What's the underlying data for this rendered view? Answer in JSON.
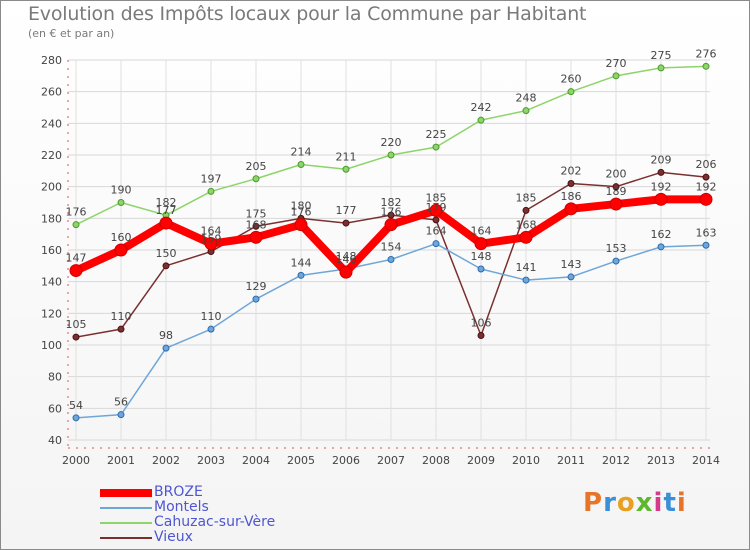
{
  "chart_data": {
    "type": "line",
    "title": "Evolution des Impôts locaux pour la Commune par Habitant",
    "subtitle": "(en € et par an)",
    "categories": [
      "2000",
      "2001",
      "2002",
      "2003",
      "2004",
      "2005",
      "2006",
      "2007",
      "2008",
      "2009",
      "2010",
      "2011",
      "2012",
      "2013",
      "2014"
    ],
    "ylim": [
      40,
      280
    ],
    "yticks": [
      40,
      60,
      80,
      100,
      120,
      140,
      160,
      180,
      200,
      220,
      240,
      260,
      280
    ],
    "grid": true,
    "legend_position": "bottom-left",
    "series": [
      {
        "name": "Cahuzac-sur-Vère",
        "color": "#8dd46a",
        "values": [
          176,
          190,
          182,
          197,
          205,
          214,
          211,
          220,
          225,
          242,
          248,
          260,
          270,
          275,
          276
        ]
      },
      {
        "name": "Vieux",
        "color": "#7a3030",
        "values": [
          105,
          110,
          150,
          159,
          175,
          180,
          177,
          182,
          179,
          106,
          185,
          202,
          200,
          209,
          206
        ]
      },
      {
        "name": "Montels",
        "color": "#6ea6d8",
        "values": [
          54,
          56,
          98,
          110,
          129,
          144,
          148,
          154,
          164,
          148,
          141,
          143,
          153,
          162,
          163
        ]
      },
      {
        "name": "BROZE",
        "color": "#ff0000",
        "values": [
          147,
          160,
          177,
          164,
          168,
          176,
          146,
          176,
          185,
          164,
          168,
          186,
          189,
          192,
          192
        ]
      }
    ],
    "point_labels": {
      "Cahuzac-sur-Vère": [
        "176",
        "190",
        "182",
        "197",
        "205",
        "214",
        "211",
        "220",
        "225",
        "242",
        "248",
        "260",
        "270",
        "275",
        "276"
      ],
      "Vieux": [
        "105",
        "110",
        "150",
        "159",
        "175",
        "180",
        "177",
        "182",
        "179",
        "106",
        "185",
        "202",
        "200",
        "209",
        "206"
      ],
      "Montels": [
        "54",
        "56",
        "98",
        "110",
        "129",
        "144",
        "148",
        "154",
        "164",
        "148",
        "141",
        "143",
        "153",
        "162",
        "163"
      ],
      "BROZE": [
        "147",
        "160",
        "177",
        "164",
        "168",
        "176",
        "146",
        "176",
        "185",
        "164",
        "168",
        "186",
        "189",
        "192",
        "192"
      ]
    },
    "legend_order": [
      "BROZE",
      "Montels",
      "Cahuzac-sur-Vère",
      "Vieux"
    ]
  },
  "logo": {
    "text": "Proxiti",
    "colors": [
      "#e8742a",
      "#3a8fd8",
      "#e8a020",
      "#5cb82e",
      "#d83a8a",
      "#3a8fd8",
      "#e8742a"
    ]
  }
}
